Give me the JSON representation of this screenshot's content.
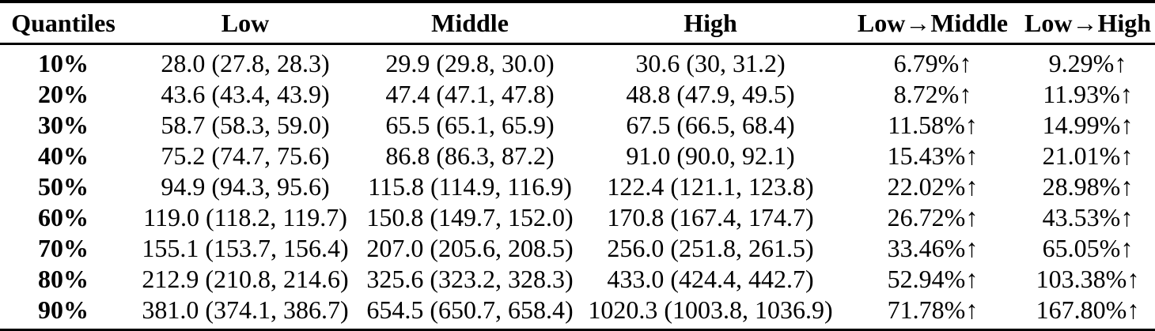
{
  "colors": {
    "text": "#000000",
    "rule": "#000000",
    "background": "#ffffff"
  },
  "table": {
    "columns": [
      "Quantiles",
      "Low",
      "Middle",
      "High",
      "Low→Middle",
      "Low→High"
    ],
    "rows": [
      [
        "10%",
        "28.0 (27.8, 28.3)",
        "29.9 (29.8, 30.0)",
        "30.6 (30, 31.2)",
        "6.79%↑",
        "9.29%↑"
      ],
      [
        "20%",
        "43.6 (43.4, 43.9)",
        "47.4 (47.1, 47.8)",
        "48.8 (47.9, 49.5)",
        "8.72%↑",
        "11.93%↑"
      ],
      [
        "30%",
        "58.7 (58.3, 59.0)",
        "65.5 (65.1, 65.9)",
        "67.5 (66.5, 68.4)",
        "11.58%↑",
        "14.99%↑"
      ],
      [
        "40%",
        "75.2 (74.7, 75.6)",
        "86.8 (86.3, 87.2)",
        "91.0 (90.0, 92.1)",
        "15.43%↑",
        "21.01%↑"
      ],
      [
        "50%",
        "94.9 (94.3, 95.6)",
        "115.8 (114.9, 116.9)",
        "122.4 (121.1, 123.8)",
        "22.02%↑",
        "28.98%↑"
      ],
      [
        "60%",
        "119.0 (118.2, 119.7)",
        "150.8 (149.7, 152.0)",
        "170.8 (167.4, 174.7)",
        "26.72%↑",
        "43.53%↑"
      ],
      [
        "70%",
        "155.1 (153.7, 156.4)",
        "207.0 (205.6, 208.5)",
        "256.0 (251.8, 261.5)",
        "33.46%↑",
        "65.05%↑"
      ],
      [
        "80%",
        "212.9 (210.8, 214.6)",
        "325.6 (323.2, 328.3)",
        "433.0 (424.4, 442.7)",
        "52.94%↑",
        "103.38%↑"
      ],
      [
        "90%",
        "381.0 (374.1, 386.7)",
        "654.5 (650.7, 658.4)",
        "1020.3 (1003.8, 1036.9)",
        "71.78%↑",
        "167.80%↑"
      ]
    ]
  }
}
